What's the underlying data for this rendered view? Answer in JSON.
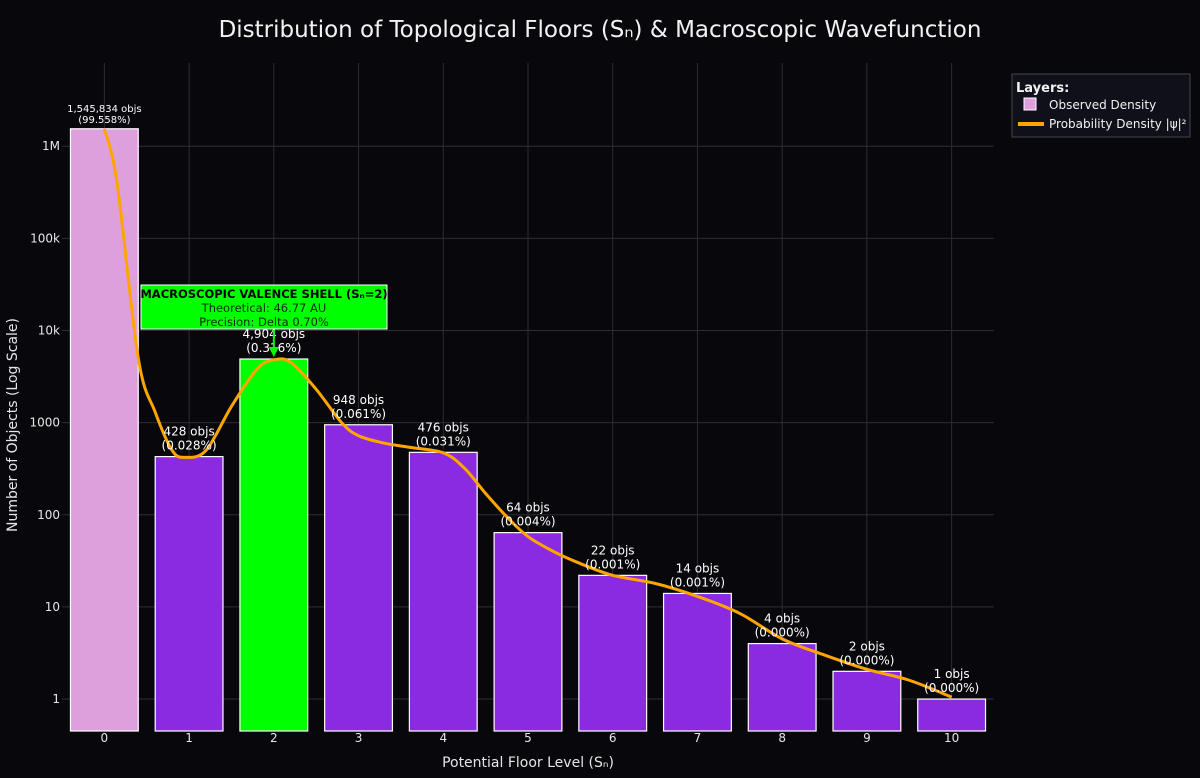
{
  "chart_data": {
    "type": "bar",
    "title": "Distribution of Topological Floors (Sₙ) & Macroscopic Wavefunction",
    "xlabel": "Potential Floor Level (Sₙ)",
    "ylabel": "Number of Objects (Log Scale)",
    "y_scale": "log",
    "ylim": [
      0.45,
      8000000
    ],
    "grid": true,
    "categories": [
      "0",
      "1",
      "2",
      "3",
      "4",
      "5",
      "6",
      "7",
      "8",
      "9",
      "10"
    ],
    "y_ticks": [
      {
        "value": 1,
        "label": "1"
      },
      {
        "value": 10,
        "label": "10"
      },
      {
        "value": 100,
        "label": "100"
      },
      {
        "value": 1000,
        "label": "1000"
      },
      {
        "value": 10000,
        "label": "10k"
      },
      {
        "value": 100000,
        "label": "100k"
      },
      {
        "value": 1000000,
        "label": "1M"
      }
    ],
    "series": [
      {
        "name": "Observed Density",
        "type": "bar",
        "values": [
          1545834,
          428,
          4904,
          948,
          476,
          64,
          22,
          14,
          4,
          2,
          1
        ],
        "bar_colors": [
          "#dda0dd",
          "#8a2be2",
          "#00ff00",
          "#8a2be2",
          "#8a2be2",
          "#8a2be2",
          "#8a2be2",
          "#8a2be2",
          "#8a2be2",
          "#8a2be2",
          "#8a2be2"
        ],
        "labels": [
          [
            "1,545,834 objs",
            "(99.558%)"
          ],
          [
            "428 objs",
            "(0.028%)"
          ],
          [
            "4,904 objs",
            "(0.316%)"
          ],
          [
            "948 objs",
            "(0.061%)"
          ],
          [
            "476 objs",
            "(0.031%)"
          ],
          [
            "64 objs",
            "(0.004%)"
          ],
          [
            "22 objs",
            "(0.001%)"
          ],
          [
            "14 objs",
            "(0.001%)"
          ],
          [
            "4 objs",
            "(0.000%)"
          ],
          [
            "2 objs",
            "(0.000%)"
          ],
          [
            "1 objs",
            "(0.000%)"
          ]
        ]
      },
      {
        "name": "Probability Density |ψ|²",
        "type": "line",
        "color": "#ffa500",
        "points": [
          [
            0,
            1545834
          ],
          [
            0.15,
            400000
          ],
          [
            0.4,
            5000
          ],
          [
            0.6,
            1300
          ],
          [
            0.8,
            500
          ],
          [
            0.95,
            420
          ],
          [
            1.2,
            500
          ],
          [
            1.5,
            1500
          ],
          [
            1.8,
            3800
          ],
          [
            2.0,
            4800
          ],
          [
            2.2,
            4500
          ],
          [
            2.5,
            2300
          ],
          [
            2.8,
            1000
          ],
          [
            3.0,
            720
          ],
          [
            3.3,
            600
          ],
          [
            3.6,
            540
          ],
          [
            4.0,
            470
          ],
          [
            4.25,
            320
          ],
          [
            4.5,
            170
          ],
          [
            4.75,
            95
          ],
          [
            5.0,
            58
          ],
          [
            5.3,
            40
          ],
          [
            5.6,
            30
          ],
          [
            6.0,
            22
          ],
          [
            6.5,
            18
          ],
          [
            7.0,
            13
          ],
          [
            7.5,
            8.5
          ],
          [
            8.0,
            4.5
          ],
          [
            8.5,
            3.0
          ],
          [
            9.0,
            2.1
          ],
          [
            9.5,
            1.6
          ],
          [
            10.0,
            1.05
          ]
        ]
      }
    ],
    "annotation": {
      "target_index": 2,
      "title": "MACROSCOPIC VALENCE SHELL (Sₙ=2)",
      "lines": [
        "Theoretical: 46.77 AU",
        "Precision: Delta 0.70%"
      ],
      "color": "#00ff00"
    },
    "legend": {
      "title": "Layers:",
      "placement": "right",
      "items": [
        "Observed Density",
        "Probability Density |ψ|²"
      ]
    }
  }
}
